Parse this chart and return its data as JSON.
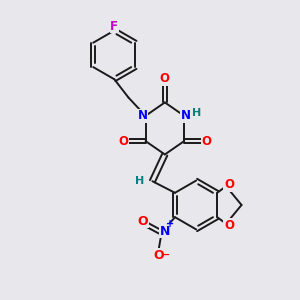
{
  "background_color": "#e8e8ec",
  "bond_color": "#1a1a1a",
  "atom_colors": {
    "N": "#0000ff",
    "O": "#ff0000",
    "F": "#cc00cc",
    "H": "#008080",
    "C": "#1a1a1a"
  },
  "figsize": [
    3.0,
    3.0
  ],
  "dpi": 100
}
